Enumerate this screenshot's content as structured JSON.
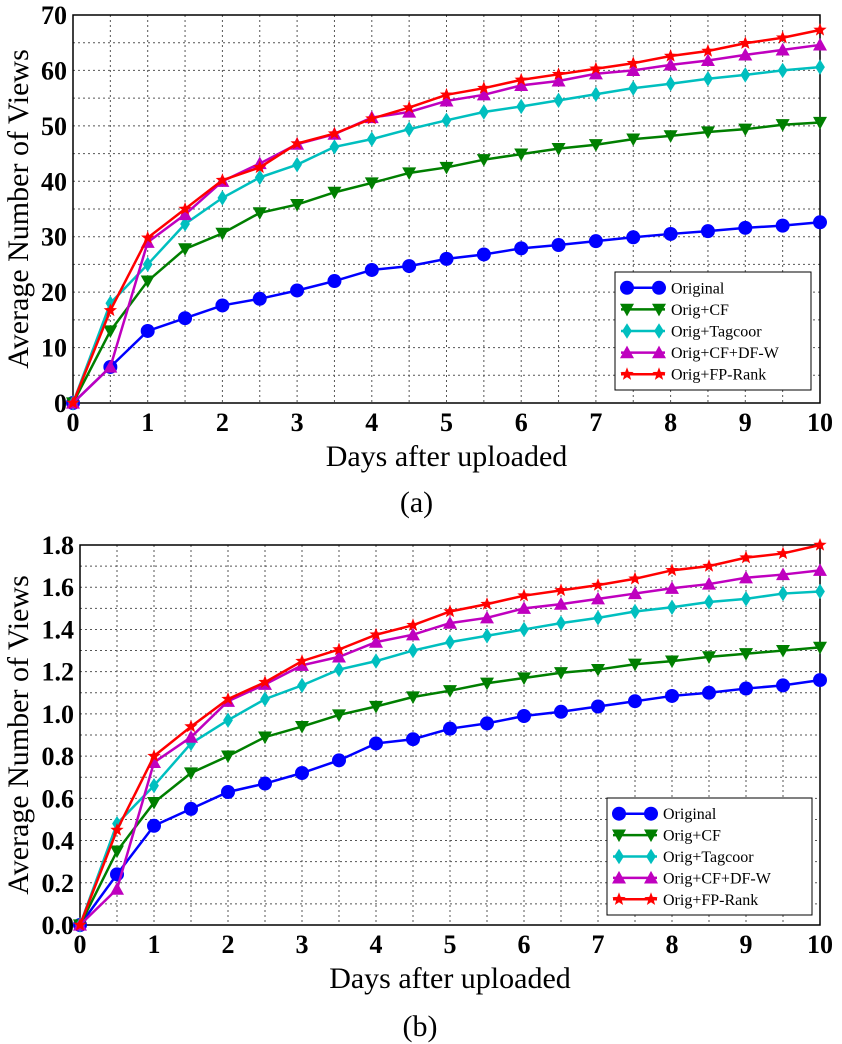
{
  "chart_data": [
    {
      "type": "line",
      "caption": "(a)",
      "xlabel": "Days after uploaded",
      "ylabel": "Average Number of Views",
      "xlim": [
        0,
        10
      ],
      "ylim": [
        0,
        70
      ],
      "xticks": [
        "0",
        "1",
        "2",
        "3",
        "4",
        "5",
        "6",
        "7",
        "8",
        "9",
        "10"
      ],
      "yticks": [
        "0",
        "10",
        "20",
        "30",
        "40",
        "50",
        "60",
        "70"
      ],
      "grid": true,
      "legend_position": "bottom-right",
      "x": [
        0,
        0.5,
        1,
        1.5,
        2,
        2.5,
        3,
        3.5,
        4,
        4.5,
        5,
        5.5,
        6,
        6.5,
        7,
        7.5,
        8,
        8.5,
        9,
        9.5,
        10
      ],
      "series": [
        {
          "name": "Original",
          "color": "#0000ff",
          "marker": "circle",
          "values": [
            0,
            6.5,
            13,
            15.3,
            17.6,
            18.8,
            20.3,
            22,
            24,
            24.7,
            26,
            26.8,
            27.9,
            28.5,
            29.2,
            29.9,
            30.5,
            31,
            31.6,
            32,
            32.6
          ]
        },
        {
          "name": "Orig+CF",
          "color": "#007f00",
          "marker": "triangle-down",
          "values": [
            0,
            13,
            22,
            27.8,
            30.6,
            34.3,
            35.8,
            38,
            39.7,
            41.5,
            42.5,
            43.9,
            44.9,
            45.9,
            46.6,
            47.6,
            48.2,
            48.9,
            49.4,
            50.2,
            50.6
          ]
        },
        {
          "name": "Orig+Tagcoor",
          "color": "#00bfbf",
          "marker": "diamond",
          "values": [
            0,
            18,
            25,
            32.3,
            37,
            40.7,
            43,
            46.2,
            47.6,
            49.4,
            51,
            52.5,
            53.5,
            54.6,
            55.7,
            56.8,
            57.6,
            58.5,
            59.2,
            60,
            60.6
          ]
        },
        {
          "name": "Orig+CF+DF-W",
          "color": "#bf00bf",
          "marker": "triangle-up",
          "values": [
            0,
            6.5,
            29,
            34,
            40,
            43.2,
            46.7,
            48.5,
            51.5,
            52.5,
            54.5,
            55.6,
            57.3,
            58.1,
            59.4,
            60,
            61,
            61.8,
            62.8,
            63.7,
            64.6
          ]
        },
        {
          "name": "Orig+FP-Rank",
          "color": "#ff0000",
          "marker": "star",
          "values": [
            0,
            16.7,
            29.8,
            35,
            40.2,
            42.5,
            46.8,
            48.6,
            51.3,
            53.3,
            55.6,
            56.8,
            58.3,
            59.3,
            60.3,
            61.3,
            62.6,
            63.5,
            64.9,
            65.9,
            67.3
          ]
        }
      ]
    },
    {
      "type": "line",
      "caption": "(b)",
      "xlabel": "Days after uploaded",
      "ylabel": "Average Number of Views",
      "xlim": [
        0,
        10
      ],
      "ylim": [
        0,
        1.8
      ],
      "xticks": [
        "0",
        "1",
        "2",
        "3",
        "4",
        "5",
        "6",
        "7",
        "8",
        "9",
        "10"
      ],
      "yticks": [
        "0.0",
        "0.2",
        "0.4",
        "0.6",
        "0.8",
        "1.0",
        "1.2",
        "1.4",
        "1.6",
        "1.8"
      ],
      "grid": true,
      "legend_position": "bottom-right",
      "x": [
        0,
        0.5,
        1,
        1.5,
        2,
        2.5,
        3,
        3.5,
        4,
        4.5,
        5,
        5.5,
        6,
        6.5,
        7,
        7.5,
        8,
        8.5,
        9,
        9.5,
        10
      ],
      "series": [
        {
          "name": "Original",
          "color": "#0000ff",
          "marker": "circle",
          "values": [
            0,
            0.24,
            0.47,
            0.55,
            0.63,
            0.67,
            0.72,
            0.78,
            0.86,
            0.88,
            0.93,
            0.955,
            0.99,
            1.01,
            1.035,
            1.06,
            1.085,
            1.1,
            1.12,
            1.135,
            1.16
          ]
        },
        {
          "name": "Orig+CF",
          "color": "#007f00",
          "marker": "triangle-down",
          "values": [
            0,
            0.35,
            0.58,
            0.72,
            0.8,
            0.89,
            0.94,
            0.995,
            1.035,
            1.08,
            1.11,
            1.145,
            1.17,
            1.195,
            1.21,
            1.235,
            1.25,
            1.27,
            1.285,
            1.3,
            1.315
          ]
        },
        {
          "name": "Orig+Tagcoor",
          "color": "#00bfbf",
          "marker": "diamond",
          "values": [
            0,
            0.48,
            0.66,
            0.86,
            0.97,
            1.07,
            1.135,
            1.21,
            1.25,
            1.3,
            1.34,
            1.37,
            1.4,
            1.43,
            1.455,
            1.485,
            1.505,
            1.53,
            1.545,
            1.57,
            1.58
          ]
        },
        {
          "name": "Orig+CF+DF-W",
          "color": "#bf00bf",
          "marker": "triangle-up",
          "values": [
            0,
            0.17,
            0.77,
            0.89,
            1.06,
            1.14,
            1.23,
            1.27,
            1.34,
            1.375,
            1.43,
            1.455,
            1.5,
            1.52,
            1.545,
            1.57,
            1.595,
            1.615,
            1.645,
            1.66,
            1.68
          ]
        },
        {
          "name": "Orig+FP-Rank",
          "color": "#ff0000",
          "marker": "star",
          "values": [
            0,
            0.45,
            0.8,
            0.94,
            1.07,
            1.15,
            1.25,
            1.305,
            1.375,
            1.42,
            1.485,
            1.52,
            1.56,
            1.585,
            1.61,
            1.64,
            1.68,
            1.7,
            1.74,
            1.76,
            1.8
          ]
        }
      ]
    }
  ]
}
